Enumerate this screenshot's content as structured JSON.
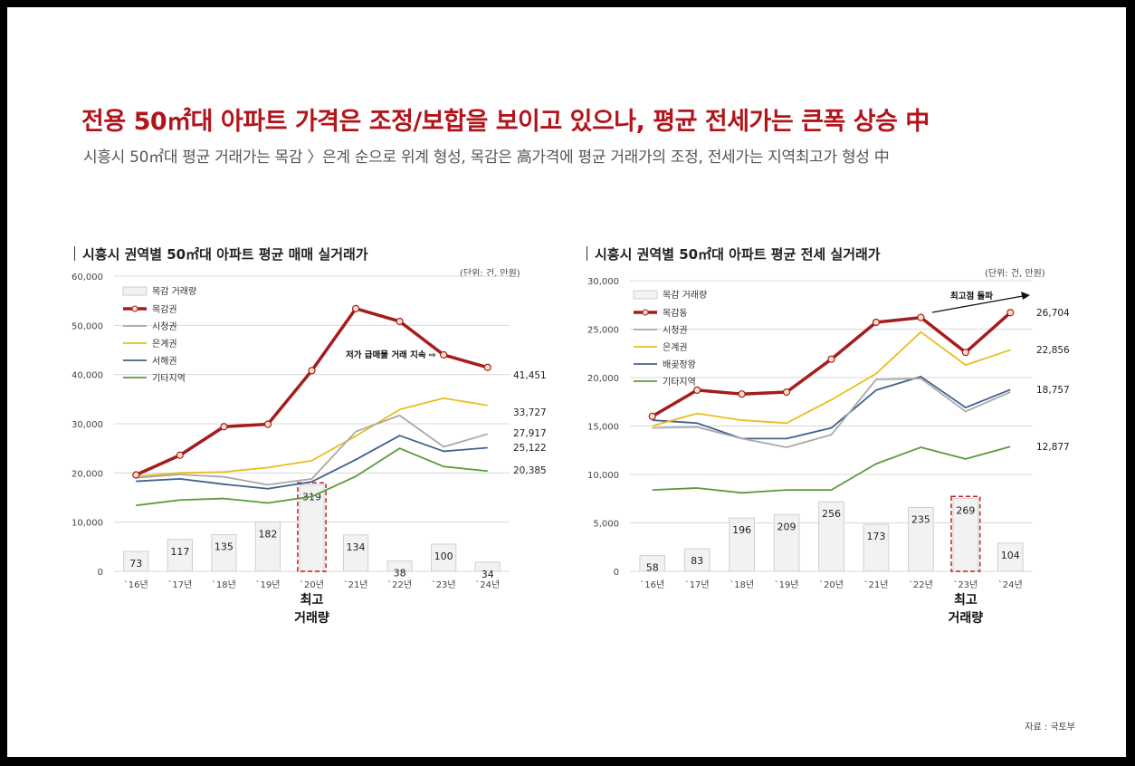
{
  "header": {
    "title": "전용 50㎡대 아파트 가격은 조정/보합을 보이고 있으나, 평균 전세가는 큰폭 상승 中",
    "subtitle": "시흥시 50㎡대 평균 거래가는 목감 〉은계 순으로 위계 형성, 목감은 高가격에 평균 거래가의 조정, 전세가는 지역최고가 형성 中"
  },
  "source": "자료 : 국토부",
  "chart_data": [
    {
      "type": "bar+line",
      "title": "시흥시 권역별 50㎡대 아파트 평균 매매 실거래가",
      "unit": "(단위: 건, 만원)",
      "categories": [
        "`16년",
        "`17년",
        "`18년",
        "`19년",
        "`20년",
        "`21년",
        "`22년",
        "`23년",
        "`24년"
      ],
      "ylim": [
        0,
        60000
      ],
      "yticks": [
        "0",
        "10,000",
        "20,000",
        "30,000",
        "40,000",
        "50,000",
        "60,000"
      ],
      "bar_series": {
        "name": "목감 거래량",
        "values": [
          73,
          117,
          135,
          182,
          319,
          134,
          38,
          100,
          34
        ]
      },
      "series": [
        {
          "name": "목감권",
          "color": "#a61c1c",
          "values": [
            19600,
            23600,
            29400,
            29900,
            40800,
            53400,
            50800,
            44000,
            41451
          ]
        },
        {
          "name": "시청권",
          "color": "#a9a9a9",
          "values": [
            19000,
            19700,
            19200,
            17600,
            18800,
            28400,
            31700,
            25300,
            27917
          ]
        },
        {
          "name": "은계권",
          "color": "#e8be1e",
          "values": [
            19300,
            20000,
            20200,
            21100,
            22500,
            27500,
            32900,
            35200,
            33727
          ]
        },
        {
          "name": "서해권",
          "color": "#3e628e",
          "values": [
            18300,
            18800,
            17700,
            16800,
            18200,
            22700,
            27600,
            24400,
            25122
          ]
        },
        {
          "name": "기타지역",
          "color": "#5b9a3c",
          "values": [
            13400,
            14500,
            14800,
            13900,
            15200,
            19300,
            25000,
            21300,
            20385
          ]
        }
      ],
      "end_labels": [
        "41,451",
        "33,727",
        "27,917",
        "25,122",
        "20,385"
      ],
      "annotation": "저가 급매물 거래 지속 ⇨",
      "highlight_index": 4,
      "highlight_label": [
        "최고",
        "거래량"
      ]
    },
    {
      "type": "bar+line",
      "title": "시흥시 권역별 50㎡대 아파트 평균 전세 실거래가",
      "unit": "(단위: 건, 만원)",
      "categories": [
        "`16년",
        "`17년",
        "`18년",
        "`19년",
        "`20년",
        "`21년",
        "`22년",
        "`23년",
        "`24년"
      ],
      "ylim": [
        0,
        30000
      ],
      "yticks": [
        "0",
        "5,000",
        "10,000",
        "15,000",
        "20,000",
        "25,000",
        "30,000"
      ],
      "bar_series": {
        "name": "목감 거래량",
        "values": [
          58,
          83,
          196,
          209,
          256,
          173,
          235,
          269,
          104
        ]
      },
      "series": [
        {
          "name": "목감동",
          "color": "#a61c1c",
          "values": [
            16000,
            18700,
            18300,
            18500,
            21900,
            25700,
            26200,
            22600,
            26704
          ]
        },
        {
          "name": "시청권",
          "color": "#a9a9a9",
          "values": [
            14800,
            14900,
            13700,
            12800,
            14100,
            19800,
            19900,
            16500,
            18500
          ]
        },
        {
          "name": "은계권",
          "color": "#e8be1e",
          "values": [
            15000,
            16300,
            15600,
            15300,
            17700,
            20400,
            24700,
            21300,
            22856
          ]
        },
        {
          "name": "배곶정왕",
          "color": "#3e628e",
          "values": [
            15600,
            15300,
            13700,
            13700,
            14800,
            18700,
            20100,
            16900,
            18757
          ]
        },
        {
          "name": "기타지역",
          "color": "#5b9a3c",
          "values": [
            8400,
            8600,
            8100,
            8400,
            8400,
            11100,
            12800,
            11600,
            12877
          ]
        }
      ],
      "end_labels": [
        "26,704",
        "22,856",
        "18,757",
        "12,877"
      ],
      "annotation": "최고점 돌파",
      "highlight_index": 7,
      "highlight_label": [
        "최고",
        "거래량"
      ]
    }
  ]
}
